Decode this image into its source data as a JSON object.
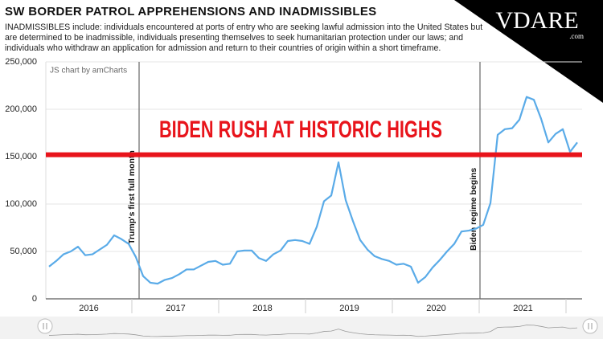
{
  "chart_data": {
    "type": "line",
    "title": "SW BORDER PATROL APPREHENSIONS AND INADMISSIBLES",
    "subtitle": "INADMISSIBLES include: individuals encountered at ports of entry who are seeking lawful admission into the United States but are determined to be inadmissible, individuals presenting themselves to seek humanitarian protection under our laws; and individuals who withdraw an application for admission and return to their countries of origin within a short timeframe.",
    "credit": "JS chart by amCharts",
    "logo": "VDARE",
    "logo_suffix": ".com",
    "categories": [
      null,
      null,
      null,
      null,
      null,
      null,
      "2016",
      null,
      null,
      null,
      null,
      null,
      null,
      null,
      null,
      null,
      null,
      null,
      "2017",
      null,
      null,
      null,
      null,
      null,
      null,
      null,
      null,
      null,
      null,
      null,
      "2018",
      null,
      null,
      null,
      null,
      null,
      null,
      null,
      null,
      null,
      null,
      null,
      "2019",
      null,
      null,
      null,
      null,
      null,
      null,
      null,
      null,
      null,
      null,
      null,
      "2020",
      null,
      null,
      null,
      null,
      null,
      null,
      null,
      null,
      null,
      null,
      null,
      "2021",
      null,
      null,
      null,
      null,
      null,
      null,
      null
    ],
    "series": [
      {
        "color": "#5aabe8",
        "values": [
          34000,
          40000,
          47000,
          50000,
          55000,
          46000,
          47000,
          52000,
          57000,
          67000,
          63000,
          58000,
          44000,
          24000,
          17000,
          16000,
          20000,
          22000,
          26000,
          31000,
          31000,
          35000,
          39000,
          40000,
          36000,
          37000,
          50000,
          51000,
          51000,
          43000,
          40000,
          47000,
          51000,
          61000,
          62000,
          61000,
          58000,
          76000,
          103000,
          109000,
          144000,
          104000,
          82000,
          62000,
          52000,
          45000,
          42000,
          40000,
          36000,
          37000,
          34000,
          17000,
          23000,
          33000,
          41000,
          50000,
          58000,
          71000,
          72000,
          74000,
          78000,
          101000,
          173000,
          179000,
          180000,
          189000,
          213000,
          210000,
          190000,
          165000,
          174000,
          179000,
          155000,
          165000
        ]
      }
    ],
    "ylim": [
      0,
      250000
    ],
    "yticks": [
      0,
      {
        "value": 50000,
        "label": "50,000"
      },
      {
        "value": 100000,
        "label": "100,000"
      },
      {
        "value": 150000,
        "label": "150,000"
      },
      {
        "value": 200000,
        "label": "200,000"
      },
      {
        "value": 250000,
        "label": "250,000"
      }
    ],
    "grid": true,
    "reference_line": {
      "value": 152000,
      "label": "BIDEN RUSH AT HISTORIC HIGHS",
      "color": "#e8141b"
    },
    "annotations": [
      {
        "text": "Trump's first full month"
      },
      {
        "text": "Biden regime begins"
      }
    ]
  }
}
